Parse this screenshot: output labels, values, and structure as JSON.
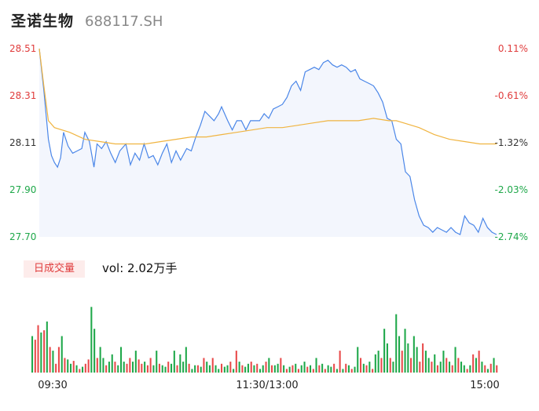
{
  "header": {
    "name": "圣诺生物",
    "code": "688117.SH"
  },
  "volume_header": {
    "tab_label": "日成交量",
    "value_text": "vol: 2.02万手"
  },
  "colors": {
    "up": "#e84a4a",
    "down": "#1fa84a",
    "price_line": "#4a86e8",
    "avg_line": "#f0b440",
    "area_fill": "#f3f6fd",
    "label_red": "#e03c3c",
    "label_green": "#1fa84a",
    "label_dark": "#333333"
  },
  "chart_data": {
    "type": "line",
    "x_tick_labels": [
      "09:30",
      "11:30/13:00",
      "15:00"
    ],
    "y_ticks_left": [
      "28.51",
      "28.31",
      "28.11",
      "27.90",
      "27.70"
    ],
    "y_ticks_right": [
      "0.11%",
      "-0.61%",
      "-1.32%",
      "-2.03%",
      "-2.74%"
    ],
    "ylim": [
      27.7,
      28.51
    ],
    "price_series": [
      [
        0,
        28.51
      ],
      [
        3,
        28.33
      ],
      [
        6,
        28.12
      ],
      [
        8,
        28.05
      ],
      [
        10,
        28.02
      ],
      [
        12,
        28.0
      ],
      [
        14,
        28.04
      ],
      [
        16,
        28.15
      ],
      [
        19,
        28.09
      ],
      [
        22,
        28.06
      ],
      [
        25,
        28.07
      ],
      [
        28,
        28.08
      ],
      [
        30,
        28.15
      ],
      [
        33,
        28.11
      ],
      [
        36,
        28.0
      ],
      [
        38,
        28.1
      ],
      [
        41,
        28.08
      ],
      [
        44,
        28.11
      ],
      [
        47,
        28.06
      ],
      [
        50,
        28.02
      ],
      [
        53,
        28.07
      ],
      [
        57,
        28.1
      ],
      [
        60,
        28.01
      ],
      [
        63,
        28.06
      ],
      [
        66,
        28.03
      ],
      [
        69,
        28.1
      ],
      [
        72,
        28.04
      ],
      [
        75,
        28.05
      ],
      [
        78,
        28.01
      ],
      [
        81,
        28.06
      ],
      [
        84,
        28.1
      ],
      [
        87,
        28.02
      ],
      [
        90,
        28.07
      ],
      [
        93,
        28.03
      ],
      [
        97,
        28.08
      ],
      [
        100,
        28.07
      ],
      [
        103,
        28.13
      ],
      [
        106,
        28.18
      ],
      [
        109,
        28.24
      ],
      [
        112,
        28.22
      ],
      [
        115,
        28.2
      ],
      [
        118,
        28.23
      ],
      [
        120,
        28.26
      ],
      [
        124,
        28.2
      ],
      [
        127,
        28.16
      ],
      [
        130,
        28.2
      ],
      [
        133,
        28.2
      ],
      [
        136,
        28.16
      ],
      [
        139,
        28.2
      ],
      [
        142,
        28.2
      ],
      [
        145,
        28.2
      ],
      [
        148,
        28.23
      ],
      [
        151,
        28.21
      ],
      [
        154,
        28.25
      ],
      [
        157,
        28.26
      ],
      [
        160,
        28.27
      ],
      [
        163,
        28.3
      ],
      [
        166,
        28.35
      ],
      [
        169,
        28.37
      ],
      [
        172,
        28.33
      ],
      [
        175,
        28.41
      ],
      [
        178,
        28.42
      ],
      [
        181,
        28.43
      ],
      [
        184,
        28.42
      ],
      [
        187,
        28.45
      ],
      [
        190,
        28.46
      ],
      [
        193,
        28.44
      ],
      [
        196,
        28.43
      ],
      [
        199,
        28.44
      ],
      [
        202,
        28.43
      ],
      [
        205,
        28.41
      ],
      [
        208,
        28.42
      ],
      [
        211,
        28.38
      ],
      [
        214,
        28.37
      ],
      [
        217,
        28.36
      ],
      [
        220,
        28.35
      ],
      [
        223,
        28.32
      ],
      [
        226,
        28.28
      ],
      [
        229,
        28.21
      ],
      [
        232,
        28.2
      ],
      [
        235,
        28.12
      ],
      [
        238,
        28.1
      ],
      [
        241,
        27.98
      ],
      [
        244,
        27.96
      ],
      [
        247,
        27.86
      ],
      [
        250,
        27.79
      ],
      [
        253,
        27.75
      ],
      [
        256,
        27.74
      ],
      [
        259,
        27.72
      ],
      [
        262,
        27.74
      ],
      [
        265,
        27.73
      ],
      [
        268,
        27.72
      ],
      [
        271,
        27.74
      ],
      [
        274,
        27.72
      ],
      [
        277,
        27.71
      ],
      [
        280,
        27.79
      ],
      [
        283,
        27.76
      ],
      [
        286,
        27.75
      ],
      [
        289,
        27.72
      ],
      [
        292,
        27.78
      ],
      [
        295,
        27.74
      ],
      [
        298,
        27.72
      ],
      [
        301,
        27.71
      ]
    ],
    "avg_series": [
      [
        0,
        28.51
      ],
      [
        3,
        28.35
      ],
      [
        6,
        28.2
      ],
      [
        10,
        28.17
      ],
      [
        20,
        28.15
      ],
      [
        30,
        28.12
      ],
      [
        40,
        28.11
      ],
      [
        50,
        28.1
      ],
      [
        60,
        28.1
      ],
      [
        70,
        28.1
      ],
      [
        80,
        28.11
      ],
      [
        90,
        28.12
      ],
      [
        100,
        28.13
      ],
      [
        110,
        28.13
      ],
      [
        120,
        28.14
      ],
      [
        130,
        28.15
      ],
      [
        140,
        28.16
      ],
      [
        150,
        28.17
      ],
      [
        160,
        28.17
      ],
      [
        170,
        28.18
      ],
      [
        180,
        28.19
      ],
      [
        190,
        28.2
      ],
      [
        200,
        28.2
      ],
      [
        210,
        28.2
      ],
      [
        220,
        28.21
      ],
      [
        230,
        28.2
      ],
      [
        235,
        28.2
      ],
      [
        240,
        28.19
      ],
      [
        250,
        28.17
      ],
      [
        260,
        28.14
      ],
      [
        270,
        28.12
      ],
      [
        280,
        28.11
      ],
      [
        290,
        28.1
      ],
      [
        301,
        28.1
      ]
    ],
    "volume_bars": [
      [
        0.5,
        0
      ],
      [
        0.45,
        1
      ],
      [
        0.65,
        1
      ],
      [
        0.55,
        0
      ],
      [
        0.58,
        1
      ],
      [
        0.7,
        0
      ],
      [
        0.35,
        1
      ],
      [
        0.3,
        0
      ],
      [
        0.12,
        1
      ],
      [
        0.35,
        1
      ],
      [
        0.5,
        0
      ],
      [
        0.2,
        1
      ],
      [
        0.18,
        0
      ],
      [
        0.12,
        0
      ],
      [
        0.16,
        1
      ],
      [
        0.1,
        0
      ],
      [
        0.05,
        1
      ],
      [
        0.08,
        0
      ],
      [
        0.12,
        1
      ],
      [
        0.18,
        1
      ],
      [
        0.9,
        0
      ],
      [
        0.6,
        0
      ],
      [
        0.2,
        1
      ],
      [
        0.35,
        0
      ],
      [
        0.2,
        0
      ],
      [
        0.1,
        1
      ],
      [
        0.15,
        0
      ],
      [
        0.25,
        0
      ],
      [
        0.15,
        1
      ],
      [
        0.1,
        0
      ],
      [
        0.35,
        0
      ],
      [
        0.15,
        0
      ],
      [
        0.12,
        1
      ],
      [
        0.2,
        1
      ],
      [
        0.15,
        0
      ],
      [
        0.3,
        0
      ],
      [
        0.18,
        1
      ],
      [
        0.12,
        1
      ],
      [
        0.15,
        0
      ],
      [
        0.1,
        1
      ],
      [
        0.2,
        1
      ],
      [
        0.1,
        0
      ],
      [
        0.3,
        0
      ],
      [
        0.12,
        1
      ],
      [
        0.1,
        0
      ],
      [
        0.08,
        0
      ],
      [
        0.15,
        1
      ],
      [
        0.12,
        0
      ],
      [
        0.3,
        0
      ],
      [
        0.1,
        1
      ],
      [
        0.25,
        0
      ],
      [
        0.15,
        0
      ],
      [
        0.35,
        0
      ],
      [
        0.12,
        1
      ],
      [
        0.05,
        0
      ],
      [
        0.1,
        0
      ],
      [
        0.1,
        1
      ],
      [
        0.08,
        0
      ],
      [
        0.2,
        1
      ],
      [
        0.15,
        0
      ],
      [
        0.1,
        0
      ],
      [
        0.2,
        1
      ],
      [
        0.1,
        0
      ],
      [
        0.05,
        0
      ],
      [
        0.12,
        1
      ],
      [
        0.08,
        0
      ],
      [
        0.1,
        0
      ],
      [
        0.15,
        1
      ],
      [
        0.05,
        0
      ],
      [
        0.3,
        1
      ],
      [
        0.15,
        0
      ],
      [
        0.1,
        1
      ],
      [
        0.08,
        0
      ],
      [
        0.12,
        0
      ],
      [
        0.15,
        1
      ],
      [
        0.1,
        0
      ],
      [
        0.12,
        1
      ],
      [
        0.05,
        0
      ],
      [
        0.1,
        0
      ],
      [
        0.15,
        1
      ],
      [
        0.2,
        0
      ],
      [
        0.1,
        1
      ],
      [
        0.1,
        0
      ],
      [
        0.12,
        0
      ],
      [
        0.2,
        1
      ],
      [
        0.1,
        0
      ],
      [
        0.05,
        1
      ],
      [
        0.08,
        0
      ],
      [
        0.1,
        1
      ],
      [
        0.12,
        0
      ],
      [
        0.05,
        1
      ],
      [
        0.1,
        0
      ],
      [
        0.15,
        0
      ],
      [
        0.08,
        1
      ],
      [
        0.1,
        0
      ],
      [
        0.05,
        1
      ],
      [
        0.2,
        0
      ],
      [
        0.1,
        1
      ],
      [
        0.12,
        0
      ],
      [
        0.05,
        1
      ],
      [
        0.1,
        0
      ],
      [
        0.08,
        0
      ],
      [
        0.12,
        1
      ],
      [
        0.05,
        0
      ],
      [
        0.3,
        1
      ],
      [
        0.05,
        0
      ],
      [
        0.12,
        1
      ],
      [
        0.1,
        0
      ],
      [
        0.05,
        1
      ],
      [
        0.08,
        0
      ],
      [
        0.35,
        0
      ],
      [
        0.2,
        1
      ],
      [
        0.12,
        0
      ],
      [
        0.1,
        1
      ],
      [
        0.15,
        0
      ],
      [
        0.05,
        1
      ],
      [
        0.25,
        0
      ],
      [
        0.3,
        0
      ],
      [
        0.2,
        1
      ],
      [
        0.6,
        0
      ],
      [
        0.4,
        0
      ],
      [
        0.2,
        1
      ],
      [
        0.15,
        0
      ],
      [
        0.8,
        0
      ],
      [
        0.5,
        0
      ],
      [
        0.3,
        1
      ],
      [
        0.6,
        0
      ],
      [
        0.4,
        0
      ],
      [
        0.2,
        1
      ],
      [
        0.5,
        0
      ],
      [
        0.35,
        0
      ],
      [
        0.15,
        1
      ],
      [
        0.4,
        1
      ],
      [
        0.3,
        0
      ],
      [
        0.2,
        0
      ],
      [
        0.15,
        1
      ],
      [
        0.25,
        0
      ],
      [
        0.1,
        1
      ],
      [
        0.15,
        0
      ],
      [
        0.3,
        0
      ],
      [
        0.2,
        1
      ],
      [
        0.15,
        0
      ],
      [
        0.1,
        1
      ],
      [
        0.35,
        0
      ],
      [
        0.2,
        1
      ],
      [
        0.15,
        0
      ],
      [
        0.1,
        0
      ],
      [
        0.05,
        1
      ],
      [
        0.1,
        0
      ],
      [
        0.25,
        1
      ],
      [
        0.2,
        0
      ],
      [
        0.3,
        1
      ],
      [
        0.15,
        0
      ],
      [
        0.1,
        1
      ],
      [
        0.05,
        0
      ],
      [
        0.12,
        1
      ],
      [
        0.2,
        0
      ],
      [
        0.1,
        1
      ]
    ]
  }
}
